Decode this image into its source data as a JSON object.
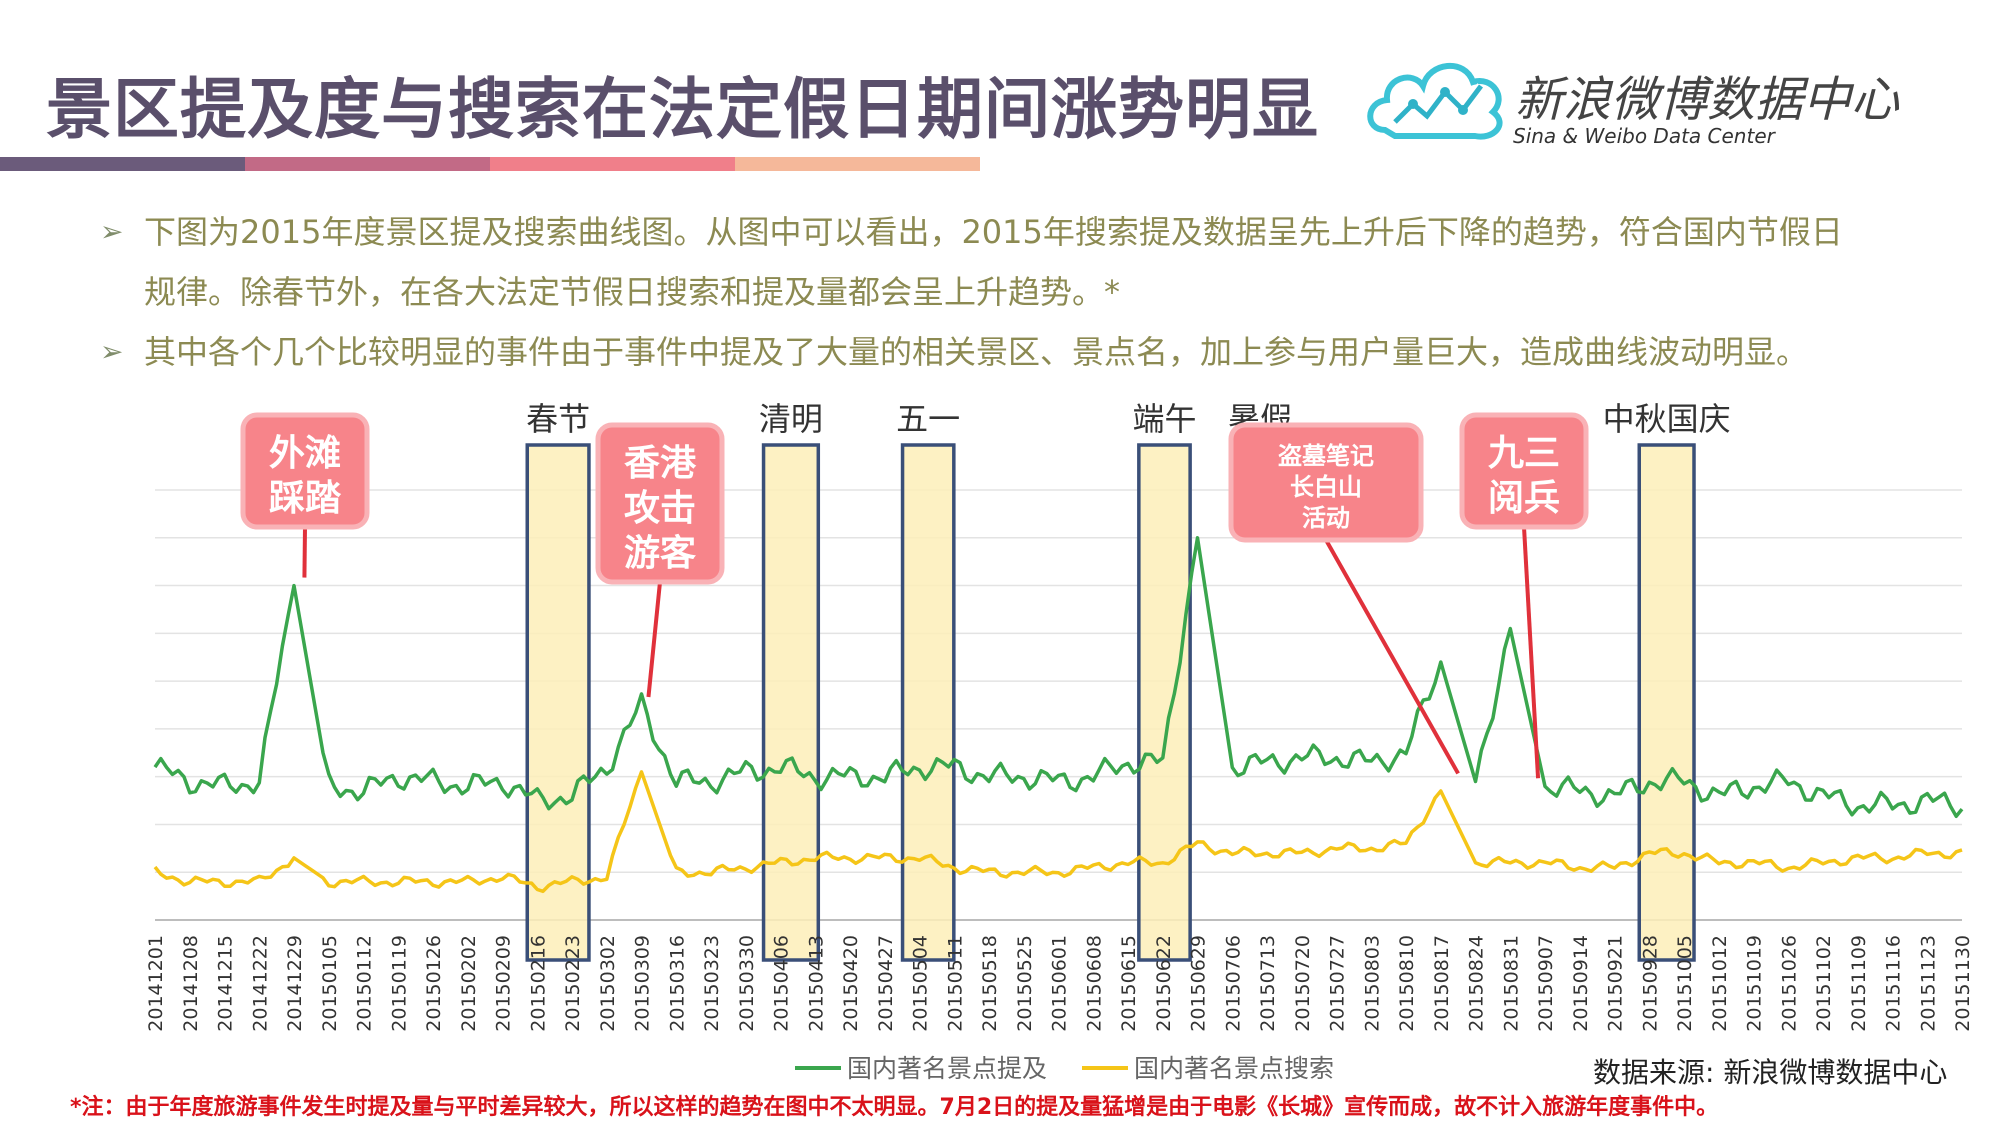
{
  "header": {
    "title": "景区提及度与搜索在法定假日期间涨势明显",
    "stripe_colors": [
      "#6b5b7b",
      "#c26a86",
      "#f07f8a",
      "#f5b89a"
    ]
  },
  "logo": {
    "name": "新浪微博数据中心",
    "subtitle": "Sina & Weibo Data Center",
    "icon": "cloud-chart-logo-icon"
  },
  "bullets": [
    {
      "line1": "下图为2015年度景区提及搜索曲线图。从图中可以看出，2015年搜索提及数据呈先上升后下降的趋势，符合国内节假日",
      "line2": "规律。除春节外，在各大法定节假日搜索和提及量都会呈上升趋势。*"
    },
    {
      "line1": "其中各个几个比较明显的事件由于事件中提及了大量的相关景区、景点名，加上参与用户量巨大，造成曲线波动明显。"
    }
  ],
  "footnote": "*注：由于年度旅游事件发生时提及量与平时差异较大，所以这样的趋势在图中不太明显。7月2日的提及量猛增是由于电影《长城》宣传而成，故不计入旅游年度事件中。",
  "source": "数据来源: 新浪微博数据中心",
  "chart_data": {
    "type": "line",
    "title": "",
    "xlabel": "",
    "ylabel": "",
    "ylim": [
      0,
      9
    ],
    "grid": true,
    "legend_position": "bottom",
    "categories": [
      "20141201",
      "20141208",
      "20141215",
      "20141222",
      "20141229",
      "20150105",
      "20150112",
      "20150119",
      "20150126",
      "20150202",
      "20150209",
      "20150216",
      "20150223",
      "20150302",
      "20150309",
      "20150316",
      "20150323",
      "20150330",
      "20150406",
      "20150413",
      "20150420",
      "20150427",
      "20150504",
      "20150511",
      "20150518",
      "20150525",
      "20150601",
      "20150608",
      "20150615",
      "20150622",
      "20150629",
      "20150706",
      "20150713",
      "20150720",
      "20150727",
      "20150803",
      "20150810",
      "20150817",
      "20150824",
      "20150831",
      "20150907",
      "20150914",
      "20150921",
      "20150928",
      "20151005",
      "20151012",
      "20151019",
      "20151026",
      "20151102",
      "20151109",
      "20151116",
      "20151123",
      "20151130"
    ],
    "series": [
      {
        "name": "国内著名景点提及",
        "color": "#3aa64d",
        "values": [
          3.2,
          2.9,
          2.8,
          2.9,
          7.0,
          2.8,
          2.7,
          3.0,
          2.9,
          2.8,
          2.9,
          2.5,
          2.6,
          3.2,
          4.5,
          2.9,
          2.9,
          3.1,
          3.2,
          3.0,
          3.0,
          3.0,
          3.2,
          3.2,
          3.0,
          3.0,
          2.9,
          3.0,
          3.3,
          3.3,
          8.0,
          3.2,
          3.3,
          3.4,
          3.4,
          3.3,
          3.5,
          5.4,
          2.9,
          6.1,
          2.8,
          2.7,
          2.6,
          2.9,
          2.9,
          2.6,
          2.8,
          2.9,
          2.6,
          2.4,
          2.4,
          2.5,
          2.4
        ]
      },
      {
        "name": "国内著名景点搜索",
        "color": "#f5c518",
        "values": [
          1.0,
          0.8,
          0.8,
          0.8,
          1.3,
          0.8,
          0.8,
          0.8,
          0.8,
          0.8,
          0.9,
          0.7,
          0.8,
          0.9,
          3.1,
          1.0,
          1.0,
          1.1,
          1.2,
          1.3,
          1.3,
          1.3,
          1.3,
          1.1,
          1.0,
          1.0,
          1.0,
          1.1,
          1.2,
          1.2,
          1.6,
          1.4,
          1.4,
          1.4,
          1.5,
          1.5,
          1.6,
          2.7,
          1.2,
          1.2,
          1.2,
          1.1,
          1.1,
          1.4,
          1.4,
          1.2,
          1.2,
          1.1,
          1.2,
          1.3,
          1.3,
          1.4,
          1.4
        ]
      }
    ],
    "holidays": [
      {
        "label": "春节",
        "start": 11,
        "end": 12.2
      },
      {
        "label": "清明",
        "start": 17.8,
        "end": 18.8
      },
      {
        "label": "五一",
        "start": 21.8,
        "end": 22.7
      },
      {
        "label": "端午",
        "start": 28.6,
        "end": 29.5
      },
      {
        "label": "中秋国庆",
        "start": 43.0,
        "end": 44.0
      }
    ],
    "extra_labels": [
      {
        "label": "暑假"
      }
    ],
    "annotations": [
      {
        "text": [
          "外滩",
          "踩踏"
        ],
        "index": 4.3
      },
      {
        "text": [
          "香港",
          "攻击",
          "游客"
        ],
        "index": 14.2
      },
      {
        "text": [
          "盗墓笔记",
          "长白山",
          "活动"
        ],
        "index": 37.5
      },
      {
        "text": [
          "九三",
          "阅兵"
        ],
        "index": 39.8
      }
    ]
  }
}
